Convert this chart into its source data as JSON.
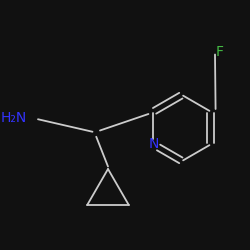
{
  "background_color": "#111111",
  "bond_color": "#cccccc",
  "atom_colors": {
    "N_pyridine": "#3333ff",
    "N_amine": "#3333ff",
    "F": "#44bb44"
  },
  "figsize": [
    2.5,
    2.5
  ],
  "dpi": 100
}
